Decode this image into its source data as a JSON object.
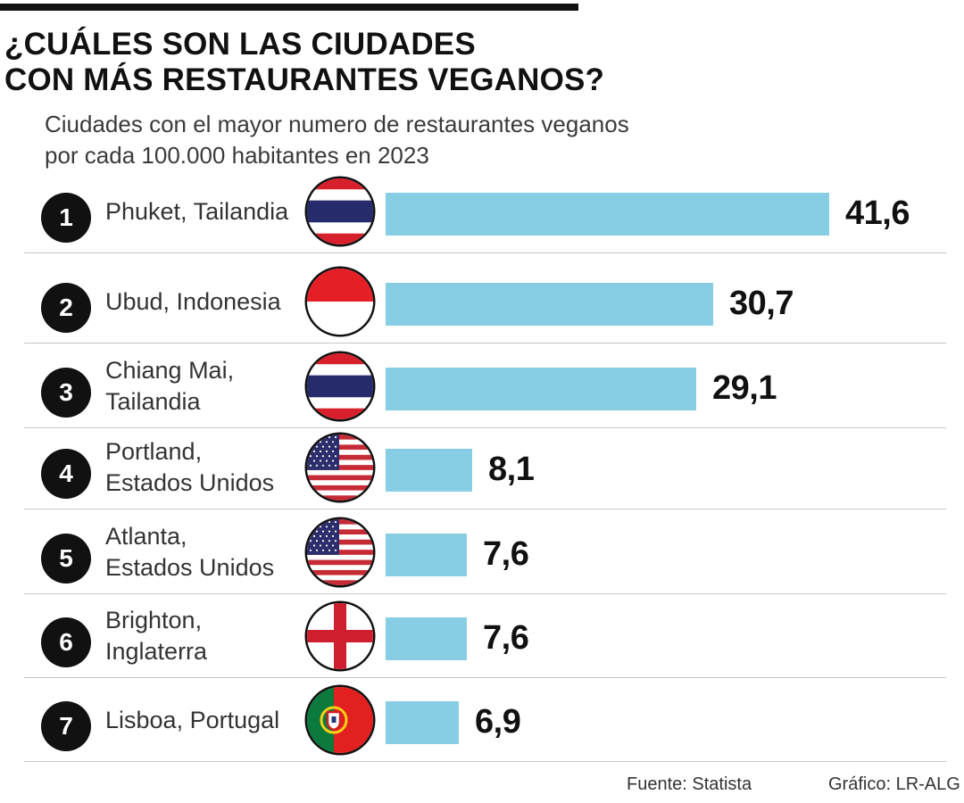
{
  "title_lines": [
    "¿CUÁLES SON LAS CIUDADES",
    "CON MÁS RESTAURANTES VEGANOS?"
  ],
  "subtitle_lines": [
    "Ciudades con el mayor numero de restaurantes veganos",
    "por cada 100.000 habitantes en 2023"
  ],
  "footer": {
    "source": "Fuente: Statista",
    "credit": "Gráfico: LR-ALG"
  },
  "colors": {
    "bar": "#87cde3",
    "text": "#111111",
    "separator": "#c6c6c6"
  },
  "chart_data": {
    "type": "bar",
    "orientation": "horizontal",
    "title": "¿CUÁLES SON LAS CIUDADES CON MÁS RESTAURANTES VEGANOS?",
    "subtitle": "Ciudades con el mayor numero de restaurantes veganos por cada 100.000 habitantes en 2023",
    "xlim": [
      0,
      41.6
    ],
    "grid": false,
    "legend": "none",
    "ranks": [
      "1",
      "2",
      "3",
      "4",
      "5",
      "6",
      "7"
    ],
    "categories": [
      "Phuket, Tailandia",
      "Ubud, Indonesia",
      "Chiang Mai, Tailandia",
      "Portland, Estados Unidos",
      "Atlanta, Estados Unidos",
      "Brighton, Inglaterra",
      "Lisboa, Portugal"
    ],
    "category_lines": [
      [
        "Phuket, Tailandia"
      ],
      [
        "Ubud, Indonesia"
      ],
      [
        "Chiang Mai,",
        "Tailandia"
      ],
      [
        "Portland,",
        "Estados Unidos"
      ],
      [
        "Atlanta,",
        "Estados Unidos"
      ],
      [
        "Brighton,",
        "Inglaterra"
      ],
      [
        "Lisboa, Portugal"
      ]
    ],
    "flags": [
      "thailand-flag",
      "indonesia-flag",
      "thailand-flag",
      "usa-flag",
      "usa-flag",
      "england-flag",
      "portugal-flag"
    ],
    "values": [
      41.6,
      30.7,
      29.1,
      8.1,
      7.6,
      7.6,
      6.9
    ],
    "value_labels": [
      "41,6",
      "30,7",
      "29,1",
      "8,1",
      "7,6",
      "7,6",
      "6,9"
    ]
  }
}
